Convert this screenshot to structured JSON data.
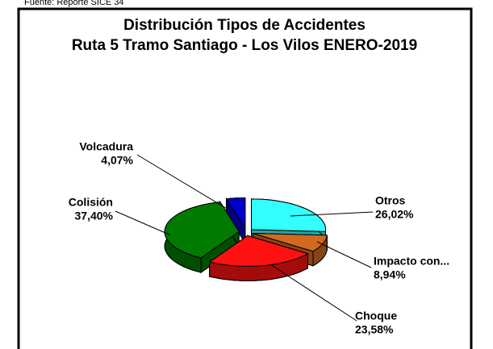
{
  "chart_data": {
    "type": "pie3d",
    "source": "Fuente: Reporte SICE 34",
    "title": "Distribución Tipos de Accidentes",
    "subtitle": "Ruta 5 Tramo Santiago - Los Vilos ENERO-2019",
    "categories": [
      "Otros",
      "Impacto con...",
      "Choque",
      "Colisión",
      "Volcadura"
    ],
    "values": [
      26.02,
      8.94,
      23.58,
      37.4,
      4.07
    ],
    "value_labels": [
      "26,02%",
      "8,94%",
      "23,58%",
      "37,40%",
      "4,07%"
    ],
    "colors": [
      "#33ffff",
      "#d2691e",
      "#ff1111",
      "#007a00",
      "#0000cc"
    ]
  }
}
